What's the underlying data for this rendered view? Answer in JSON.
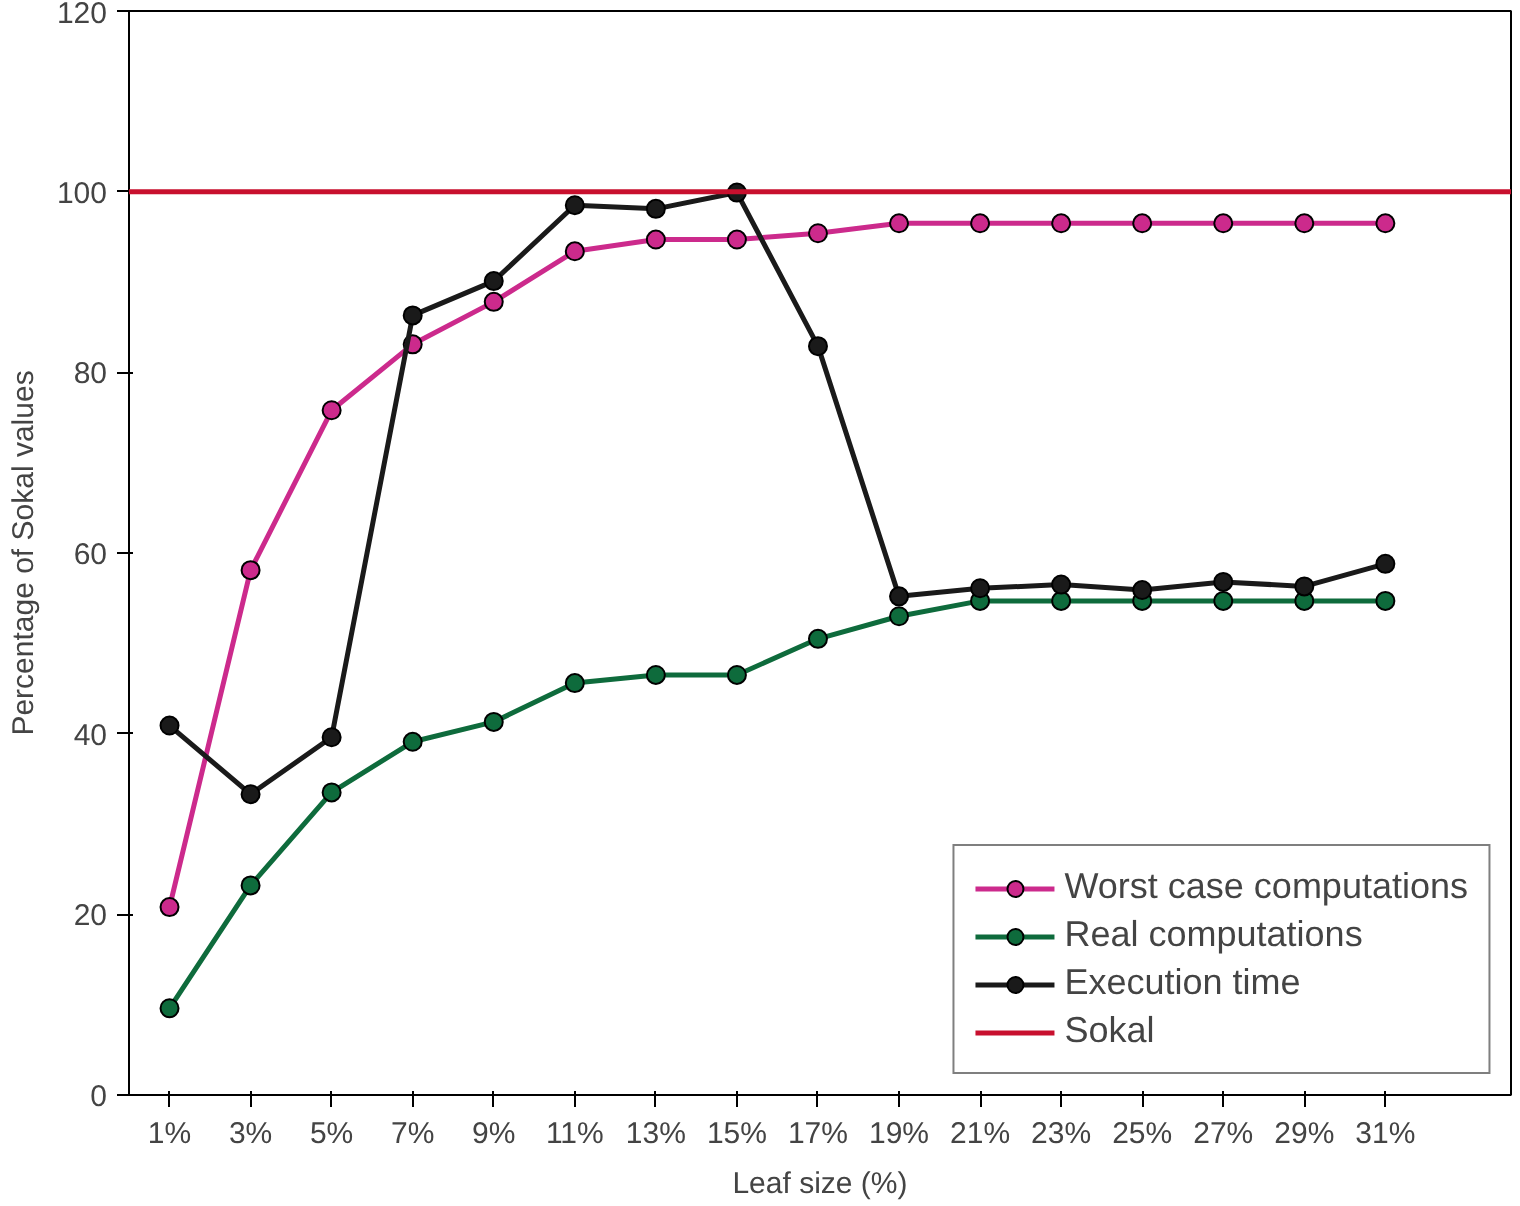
{
  "chart_data": {
    "type": "line",
    "xlabel": "Leaf size (%)",
    "ylabel": "Percentage of Sokal values",
    "categories": [
      "1%",
      "3%",
      "5%",
      "7%",
      "9%",
      "11%",
      "13%",
      "15%",
      "17%",
      "19%",
      "21%",
      "23%",
      "25%",
      "27%",
      "29%",
      "31%"
    ],
    "ylim": [
      0,
      120
    ],
    "yticks": [
      0,
      20,
      40,
      60,
      80,
      100,
      120
    ],
    "grid": false,
    "legend": "bottom right",
    "marker": "circle",
    "line_style": "solid",
    "series": [
      {
        "name": "Worst case computations",
        "color": "#cc2a8c",
        "values": [
          20.8,
          58.1,
          75.8,
          83.1,
          87.8,
          93.4,
          94.7,
          94.7,
          95.4,
          96.5,
          96.5,
          96.5,
          96.5,
          96.5,
          96.5,
          96.5
        ]
      },
      {
        "name": "Real computations",
        "color": "#0e6b3c",
        "values": [
          9.6,
          23.2,
          33.5,
          39.1,
          41.3,
          45.6,
          46.5,
          46.5,
          50.5,
          53,
          54.7,
          54.7,
          54.7,
          54.7,
          54.7,
          54.7
        ]
      },
      {
        "name": "Execution time",
        "color": "#1a1a1a",
        "values": [
          40.9,
          33.3,
          39.6,
          86.3,
          90.1,
          98.5,
          98.1,
          99.9,
          82.9,
          55.2,
          56.1,
          56.5,
          55.9,
          56.8,
          56.3,
          58.8
        ]
      }
    ],
    "ref_lines": [
      {
        "axis": "y",
        "value": 100,
        "label": "Sokal",
        "color": "#c8102e",
        "line_style": "solid"
      }
    ]
  }
}
